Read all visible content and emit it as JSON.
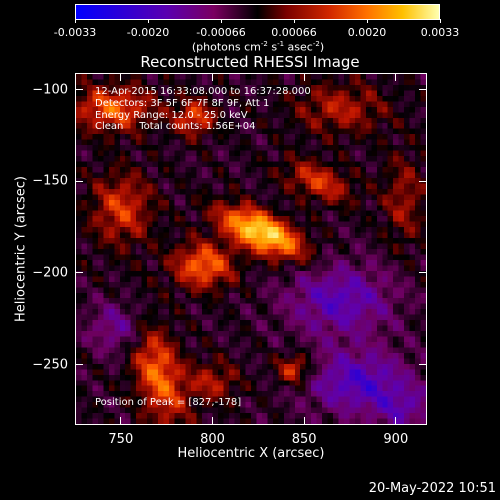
{
  "colorbar": {
    "ticks": [
      "-0.0033",
      "-0.0020",
      "-0.00066",
      "0.00066",
      "0.0020",
      "0.0033"
    ],
    "units_prefix": "(photons cm",
    "units_exp1": "-2",
    "units_mid": " s",
    "units_exp2": "-1",
    "units_mid2": " asec",
    "units_exp3": "-2",
    "units_suffix": ")",
    "colors": [
      "#0000ff",
      "#5a00b0",
      "#000000",
      "#d22800",
      "#ffc000",
      "#ffffb0"
    ]
  },
  "chart_data": {
    "type": "heatmap",
    "title": "Reconstructed RHESSI Image",
    "xlabel": "Heliocentric X (arcsec)",
    "ylabel": "Heliocentric Y (arcsec)",
    "xlim": [
      725,
      917
    ],
    "ylim": [
      -283,
      -91
    ],
    "xticks": [
      750,
      800,
      850,
      900
    ],
    "yticks": [
      -100,
      -150,
      -200,
      -250
    ],
    "value_range": [
      -0.0033,
      0.0033
    ],
    "peak": {
      "x": 827,
      "y": -178
    },
    "info_lines": [
      "12-Apr-2015 16:33:08.000 to 16:37:28.000",
      "Detectors: 3F 5F 6F 7F 8F 9F, Att 1",
      "Energy Range: 12.0 - 25.0 keV",
      "Clean     Total counts: 1.56E+04"
    ],
    "peak_label": "Position of Peak = [827,-178]",
    "sources": [
      {
        "x": 827,
        "y": -178,
        "amp": 1.0,
        "sx": 17,
        "sy": 7,
        "rot": -25
      },
      {
        "x": 795,
        "y": -196,
        "amp": 0.6,
        "sx": 12,
        "sy": 9,
        "rot": 0
      },
      {
        "x": 770,
        "y": -255,
        "amp": 0.6,
        "sx": 9,
        "sy": 22,
        "rot": 15
      },
      {
        "x": 750,
        "y": -165,
        "amp": 0.45,
        "sx": 12,
        "sy": 14,
        "rot": 0
      },
      {
        "x": 745,
        "y": -110,
        "amp": 0.55,
        "sx": 16,
        "sy": 9,
        "rot": 0
      },
      {
        "x": 790,
        "y": -115,
        "amp": 0.5,
        "sx": 8,
        "sy": 7,
        "rot": 0
      },
      {
        "x": 858,
        "y": -150,
        "amp": 0.45,
        "sx": 14,
        "sy": 7,
        "rot": -20
      },
      {
        "x": 845,
        "y": -253,
        "amp": 0.5,
        "sx": 7,
        "sy": 6,
        "rot": 0
      },
      {
        "x": 870,
        "y": -110,
        "amp": 0.35,
        "sx": 18,
        "sy": 10,
        "rot": 0
      },
      {
        "x": 905,
        "y": -160,
        "amp": 0.3,
        "sx": 8,
        "sy": 18,
        "rot": 0
      },
      {
        "x": 800,
        "y": -260,
        "amp": 0.35,
        "sx": 10,
        "sy": 8,
        "rot": 0
      },
      {
        "x": 750,
        "y": -230,
        "amp": -0.35,
        "sx": 12,
        "sy": 10,
        "rot": 0
      },
      {
        "x": 870,
        "y": -215,
        "amp": -0.45,
        "sx": 20,
        "sy": 14,
        "rot": 0
      },
      {
        "x": 880,
        "y": -260,
        "amp": -0.5,
        "sx": 20,
        "sy": 12,
        "rot": 0
      },
      {
        "x": 905,
        "y": -275,
        "amp": -0.3,
        "sx": 12,
        "sy": 8,
        "rot": 0
      }
    ]
  },
  "footer": {
    "date": "20-May-2022 10:51"
  }
}
